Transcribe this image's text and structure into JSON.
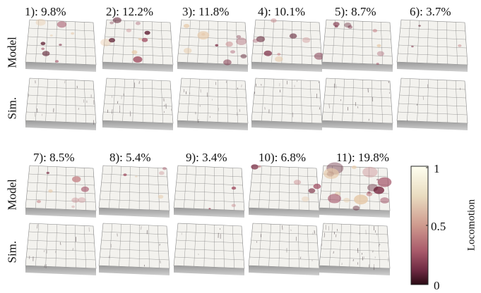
{
  "rows": {
    "model_label": "Model",
    "sim_label": "Sim."
  },
  "panels": [
    {
      "label": "1): 9.8%",
      "fraction": 0.098
    },
    {
      "label": "2): 12.2%",
      "fraction": 0.122
    },
    {
      "label": "3): 11.8%",
      "fraction": 0.118
    },
    {
      "label": "4): 10.1%",
      "fraction": 0.101
    },
    {
      "label": "5): 8.7%",
      "fraction": 0.087
    },
    {
      "label": "6): 3.7%",
      "fraction": 0.037
    },
    {
      "label": "7): 8.5%",
      "fraction": 0.085
    },
    {
      "label": "8): 5.4%",
      "fraction": 0.054
    },
    {
      "label": "9): 3.4%",
      "fraction": 0.034
    },
    {
      "label": "10): 6.8%",
      "fraction": 0.068
    },
    {
      "label": "11): 19.8%",
      "fraction": 0.198
    }
  ],
  "colorbar": {
    "title": "Locomotion",
    "ticks": [
      "1",
      "0.5",
      "0"
    ],
    "colors": [
      "#fffff0",
      "#e9dcc0",
      "#cf9a8e",
      "#a8596a",
      "#6e2a42",
      "#2a0a14"
    ]
  }
}
